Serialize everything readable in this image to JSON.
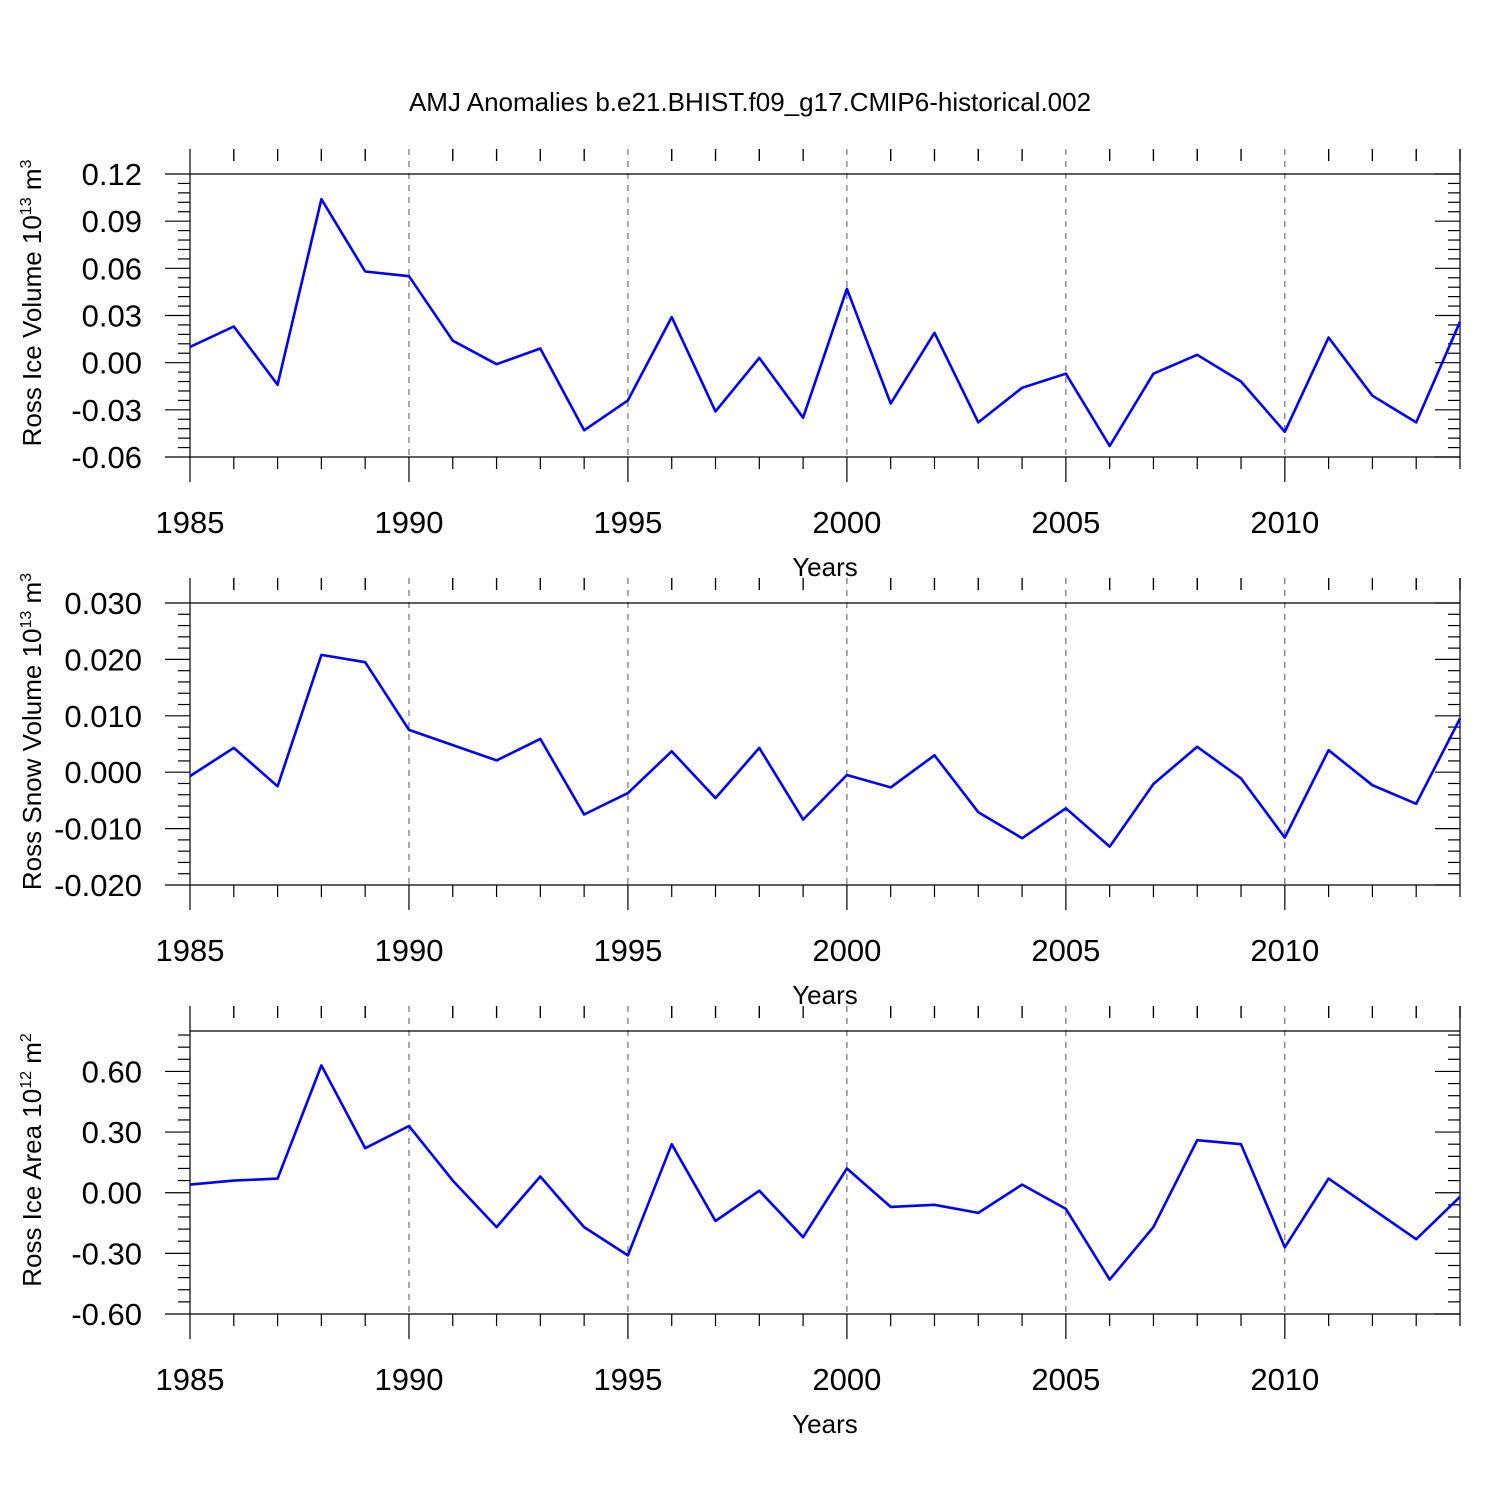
{
  "title": "AMJ Anomalies b.e21.BHIST.f09_g17.CMIP6-historical.002",
  "colors": {
    "line": "#0000ff",
    "axis": "#000000",
    "grid": "#555555"
  },
  "chart_data": [
    {
      "type": "line",
      "ylabel": {
        "pre": "Ross Ice Volume 10",
        "sup": "13",
        "mid": " m",
        "sup2": "3"
      },
      "xlabel": "Years",
      "xlim": [
        1985,
        2014
      ],
      "ylim": [
        -0.06,
        0.12
      ],
      "yticks": [
        -0.06,
        -0.03,
        0.0,
        0.03,
        0.06,
        0.09,
        0.12
      ],
      "ytick_labels": [
        "-0.06",
        "-0.03",
        "0.00",
        "0.03",
        "0.06",
        "0.09",
        "0.12"
      ],
      "xticks": [
        1985,
        1990,
        1995,
        2000,
        2005,
        2010
      ],
      "xtick_labels": [
        "1985",
        "1990",
        "1995",
        "2000",
        "2005",
        "2010"
      ],
      "grid": "x-dashed",
      "series": [
        {
          "x": [
            1985,
            1986,
            1987,
            1988,
            1989,
            1990,
            1991,
            1992,
            1993,
            1994,
            1995,
            1996,
            1997,
            1998,
            1999,
            2000,
            2001,
            2002,
            2003,
            2004,
            2005,
            2006,
            2007,
            2008,
            2009,
            2010,
            2011,
            2012,
            2013,
            2014
          ],
          "values": [
            0.01,
            0.023,
            -0.014,
            0.104,
            0.058,
            0.055,
            0.014,
            -0.001,
            0.009,
            -0.043,
            -0.024,
            0.029,
            -0.031,
            0.003,
            -0.035,
            0.047,
            -0.026,
            0.019,
            -0.038,
            -0.016,
            -0.007,
            -0.053,
            -0.007,
            0.005,
            -0.012,
            -0.044,
            0.016,
            -0.021,
            -0.038,
            0.026
          ]
        }
      ]
    },
    {
      "type": "line",
      "ylabel": {
        "pre": "Ross Snow Volume 10",
        "sup": "13",
        "mid": " m",
        "sup2": "3"
      },
      "xlabel": "Years",
      "xlim": [
        1985,
        2014
      ],
      "ylim": [
        -0.02,
        0.03
      ],
      "yticks": [
        -0.02,
        -0.01,
        0.0,
        0.01,
        0.02,
        0.03
      ],
      "ytick_labels": [
        "-0.020",
        "-0.010",
        "0.000",
        "0.010",
        "0.020",
        "0.030"
      ],
      "xticks": [
        1985,
        1990,
        1995,
        2000,
        2005,
        2010
      ],
      "xtick_labels": [
        "1985",
        "1990",
        "1995",
        "2000",
        "2005",
        "2010"
      ],
      "grid": "x-dashed",
      "series": [
        {
          "x": [
            1985,
            1986,
            1987,
            1988,
            1989,
            1990,
            1991,
            1992,
            1993,
            1994,
            1995,
            1996,
            1997,
            1998,
            1999,
            2000,
            2001,
            2002,
            2003,
            2004,
            2005,
            2006,
            2007,
            2008,
            2009,
            2010,
            2011,
            2012,
            2013,
            2014
          ],
          "values": [
            -0.0007,
            0.0043,
            -0.0025,
            0.0208,
            0.0195,
            0.0075,
            0.0048,
            0.0021,
            0.0059,
            -0.0075,
            -0.0037,
            0.0037,
            -0.0046,
            0.0043,
            -0.0084,
            -0.0005,
            -0.0027,
            0.003,
            -0.0071,
            -0.0117,
            -0.0064,
            -0.0132,
            -0.0021,
            0.0045,
            -0.0011,
            -0.0116,
            0.0039,
            -0.0023,
            -0.0056,
            0.0095
          ]
        }
      ]
    },
    {
      "type": "line",
      "ylabel": {
        "pre": "Ross Ice Area 10",
        "sup": "12",
        "mid": " m",
        "sup2": "2"
      },
      "xlabel": "Years",
      "xlim": [
        1985,
        2014
      ],
      "ylim": [
        -0.6,
        0.8
      ],
      "yticks": [
        -0.6,
        -0.3,
        0.0,
        0.3,
        0.6
      ],
      "ytick_labels": [
        "-0.60",
        "-0.30",
        "0.00",
        "0.30",
        "0.60"
      ],
      "xticks": [
        1985,
        1990,
        1995,
        2000,
        2005,
        2010
      ],
      "xtick_labels": [
        "1985",
        "1990",
        "1995",
        "2000",
        "2005",
        "2010"
      ],
      "grid": "x-dashed",
      "series": [
        {
          "x": [
            1985,
            1986,
            1987,
            1988,
            1989,
            1990,
            1991,
            1992,
            1993,
            1994,
            1995,
            1996,
            1997,
            1998,
            1999,
            2000,
            2001,
            2002,
            2003,
            2004,
            2005,
            2006,
            2007,
            2008,
            2009,
            2010,
            2011,
            2012,
            2013,
            2014
          ],
          "values": [
            0.04,
            0.06,
            0.07,
            0.63,
            0.22,
            0.33,
            0.06,
            -0.17,
            0.08,
            -0.17,
            -0.31,
            0.24,
            -0.14,
            0.01,
            -0.22,
            0.12,
            -0.07,
            -0.06,
            -0.1,
            0.04,
            -0.08,
            -0.43,
            -0.17,
            0.26,
            0.24,
            -0.27,
            0.07,
            -0.08,
            -0.23,
            -0.02
          ]
        }
      ]
    }
  ]
}
